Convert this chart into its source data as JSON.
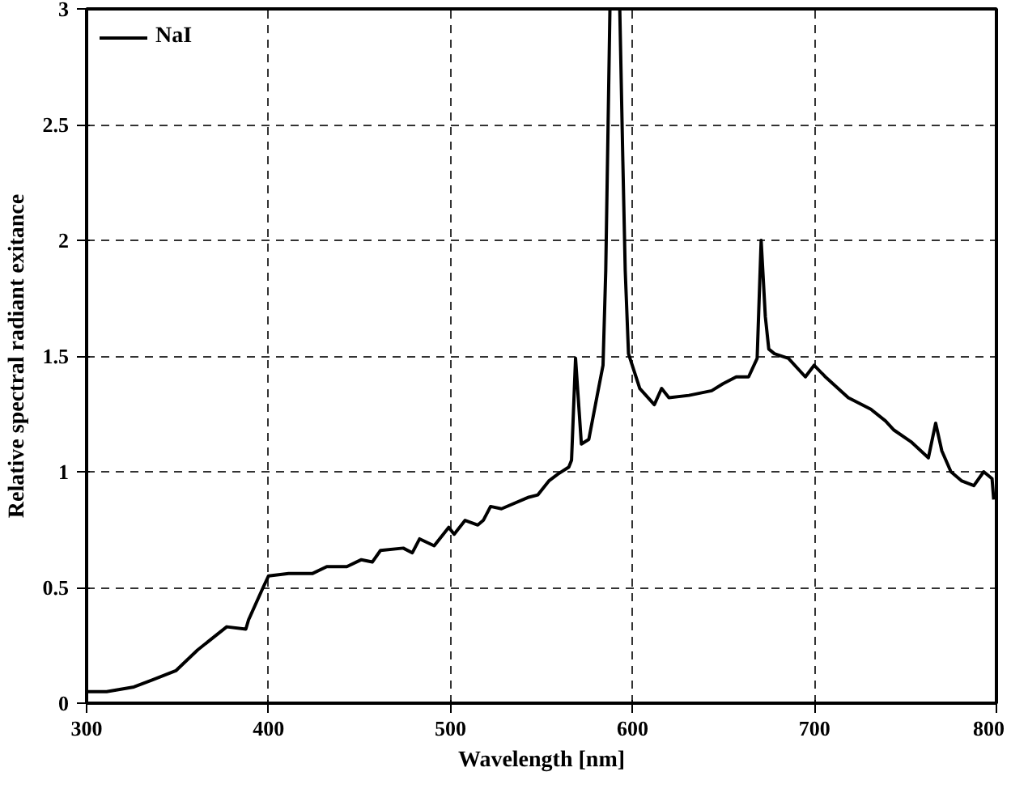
{
  "chart_data": {
    "type": "line",
    "xlabel": "Wavelength [nm]",
    "ylabel": "Relative spectral radiant exitance",
    "xlim": [
      300,
      800
    ],
    "ylim": [
      0,
      3
    ],
    "xticks": [
      300,
      400,
      500,
      600,
      700,
      800
    ],
    "yticks": [
      0,
      0.5,
      1,
      1.5,
      2,
      2.5,
      3
    ],
    "grid": true,
    "legend": "top left",
    "line_style": "solid",
    "marker": "none",
    "series": [
      {
        "name": "NaI",
        "color": "#000000",
        "x": [
          300,
          311,
          326,
          336,
          349,
          361,
          377,
          387.5,
          389,
          397,
          400,
          411,
          424,
          432,
          443,
          451,
          457,
          461.5,
          474,
          479,
          483,
          491,
          499,
          502,
          508,
          515,
          518,
          522,
          528,
          543,
          548,
          554,
          559,
          565,
          566.5,
          568.7,
          571.9,
          576,
          580.6,
          583.8,
          585.3,
          587.6,
          593,
          594.7,
          596,
          597.8,
          604,
          612,
          616,
          620,
          631,
          643.5,
          649.7,
          657,
          663.8,
          668.5,
          670.7,
          673,
          674.9,
          678,
          685.7,
          695,
          699.8,
          706,
          718.6,
          731,
          739,
          743.7,
          753,
          762.6,
          766.6,
          770,
          775,
          781,
          787.6,
          793,
          797.6,
          798.5
        ],
        "values": [
          0.05,
          0.05,
          0.07,
          0.1,
          0.14,
          0.23,
          0.33,
          0.32,
          0.36,
          0.5,
          0.55,
          0.56,
          0.56,
          0.59,
          0.59,
          0.62,
          0.61,
          0.66,
          0.67,
          0.65,
          0.71,
          0.68,
          0.76,
          0.73,
          0.79,
          0.77,
          0.79,
          0.85,
          0.84,
          0.89,
          0.9,
          0.96,
          0.99,
          1.02,
          1.05,
          1.49,
          1.12,
          1.14,
          1.33,
          1.46,
          1.87,
          3,
          3,
          2.34,
          1.87,
          1.51,
          1.36,
          1.29,
          1.36,
          1.32,
          1.33,
          1.35,
          1.38,
          1.41,
          1.41,
          1.49,
          2.0,
          1.67,
          1.53,
          1.51,
          1.49,
          1.41,
          1.46,
          1.41,
          1.32,
          1.27,
          1.22,
          1.18,
          1.13,
          1.06,
          1.21,
          1.09,
          1.0,
          0.96,
          0.94,
          1.0,
          0.97,
          0.88
        ]
      }
    ]
  }
}
